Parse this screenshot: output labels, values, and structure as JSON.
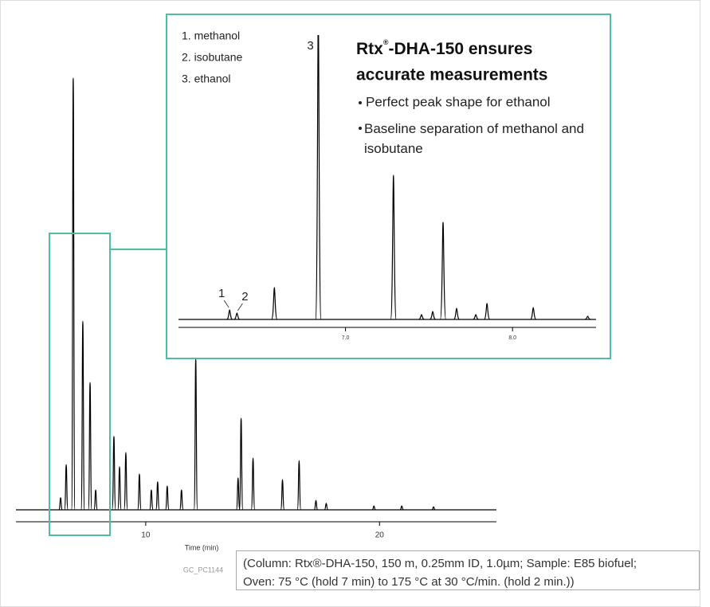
{
  "chart_data": [
    {
      "type": "chromatogram",
      "x_label": "Time (min)",
      "x": [
        6.36,
        6.6,
        6.9,
        7.31,
        7.62,
        7.86,
        8.64,
        8.88,
        9.15,
        9.73,
        10.24,
        10.51,
        10.92,
        11.53,
        12.14,
        13.95,
        14.08,
        14.59,
        15.85,
        16.56,
        17.28,
        17.72,
        19.76,
        20.95,
        22.31
      ],
      "values": [
        2.8,
        10.5,
        100,
        43.7,
        29.5,
        4.6,
        17,
        10,
        13.3,
        8.3,
        4.6,
        6.5,
        5.5,
        4.6,
        35,
        7.4,
        21.2,
        12,
        7,
        11.4,
        2.2,
        1.5,
        0.9,
        0.9,
        0.7
      ],
      "xlim": [
        4.45,
        25
      ],
      "ylim": [
        0,
        105
      ],
      "xticks": [
        10,
        20
      ],
      "color": "#000000"
    },
    {
      "type": "chromatogram",
      "x_label": "Time (min)",
      "title_parts": [
        "Rtx",
        "®",
        "-DHA-150 ensures",
        "accurate measurements"
      ],
      "legend_items": [
        "1. methanol",
        "2. isobutane",
        "3. ethanol"
      ],
      "bullets": [
        "Perfect peak shape for ethanol",
        "Baseline separation of methanol and isobutane"
      ],
      "x": [
        6.306,
        6.35,
        6.574,
        6.837,
        7.287,
        7.455,
        7.522,
        7.584,
        7.665,
        7.78,
        7.847,
        8.124,
        8.45
      ],
      "values": [
        12,
        8,
        40,
        380,
        181,
        6,
        10,
        122,
        14,
        6,
        20,
        15,
        4
      ],
      "peak_labels": [
        "1",
        "2",
        null,
        "3",
        null,
        null,
        null,
        null,
        null,
        null,
        null,
        null,
        null
      ],
      "xlim": [
        6.0,
        8.5
      ],
      "ylim": [
        0,
        360
      ],
      "xticks": [
        {
          "value": 7,
          "label": "7.0"
        },
        {
          "value": 8,
          "label": "8.0"
        }
      ],
      "color": "#000000"
    }
  ],
  "figure_id": "GC_PC1144",
  "caption": [
    "(Column: Rtx®-DHA-150, 150 m, 0.25mm ID, 1.0µm; Sample: E85 biofuel;",
    "Oven: 75 °C (hold 7 min) to 175 °C at 30 °C/min. (hold 2 min.))"
  ]
}
